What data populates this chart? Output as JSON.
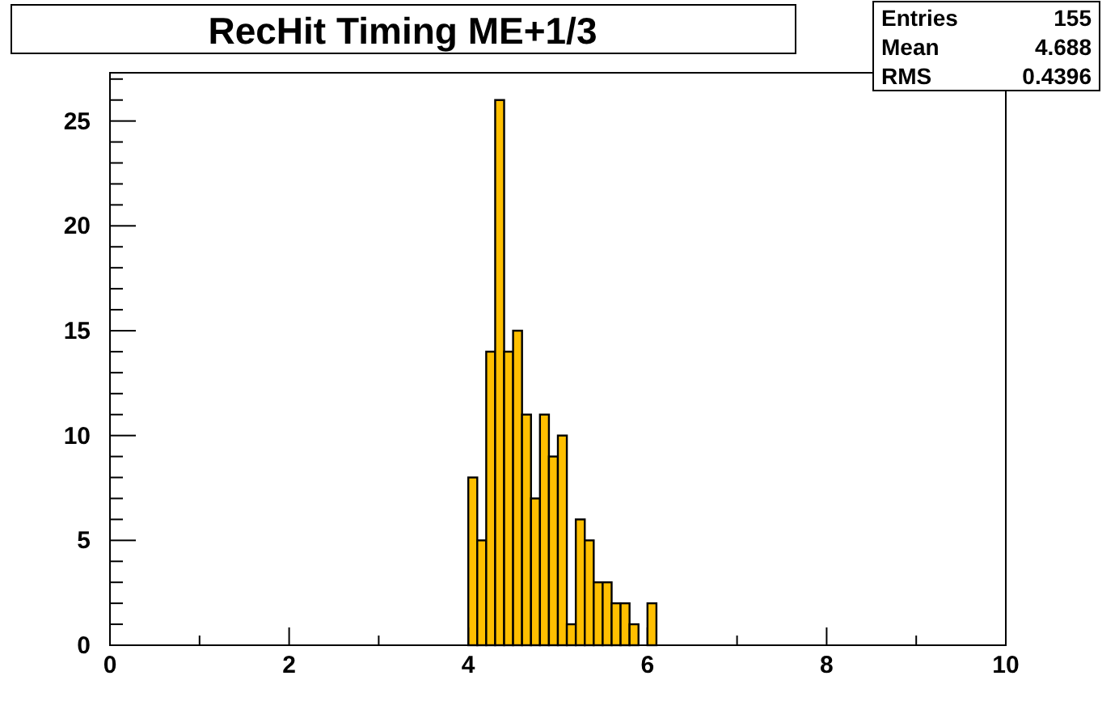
{
  "chart_data": {
    "type": "histogram",
    "title": "RecHit Timing ME+1/3",
    "bins": [
      4.0,
      4.1,
      4.2,
      4.3,
      4.4,
      4.5,
      4.6,
      4.7,
      4.8,
      4.9,
      5.0,
      5.1,
      5.2,
      5.3,
      5.4,
      5.5,
      5.6,
      5.7,
      5.8,
      5.9,
      6.0,
      6.1
    ],
    "values": [
      8,
      5,
      14,
      26,
      14,
      15,
      11,
      7,
      11,
      9,
      10,
      1,
      6,
      5,
      3,
      3,
      2,
      2,
      1,
      0,
      2
    ],
    "color": "#ffbf00",
    "xlim": [
      0,
      10
    ],
    "xticks": [
      0,
      {
        "value": 1,
        "label": null
      },
      2,
      {
        "value": 3,
        "label": null
      },
      4,
      {
        "value": 5,
        "label": null
      },
      6,
      {
        "value": 7,
        "label": null
      },
      8,
      {
        "value": 9,
        "label": null
      },
      10
    ],
    "ylim": [
      0,
      27.3
    ],
    "yticks": [
      0,
      {
        "value": 1,
        "label": null
      },
      {
        "value": 2,
        "label": null
      },
      {
        "value": 3,
        "label": null
      },
      {
        "value": 4,
        "label": null
      },
      5,
      {
        "value": 6,
        "label": null
      },
      {
        "value": 7,
        "label": null
      },
      {
        "value": 8,
        "label": null
      },
      {
        "value": 9,
        "label": null
      },
      10,
      {
        "value": 11,
        "label": null
      },
      {
        "value": 12,
        "label": null
      },
      {
        "value": 13,
        "label": null
      },
      {
        "value": 14,
        "label": null
      },
      15,
      {
        "value": 16,
        "label": null
      },
      {
        "value": 17,
        "label": null
      },
      {
        "value": 18,
        "label": null
      },
      {
        "value": 19,
        "label": null
      },
      20,
      {
        "value": 21,
        "label": null
      },
      {
        "value": 22,
        "label": null
      },
      {
        "value": 23,
        "label": null
      },
      {
        "value": 24,
        "label": null
      },
      25,
      {
        "value": 26,
        "label": null
      },
      {
        "value": 27,
        "label": null
      }
    ],
    "annotations": [
      "Entries 155",
      "Mean 4.688",
      "RMS 0.4396"
    ],
    "grid": false
  }
}
